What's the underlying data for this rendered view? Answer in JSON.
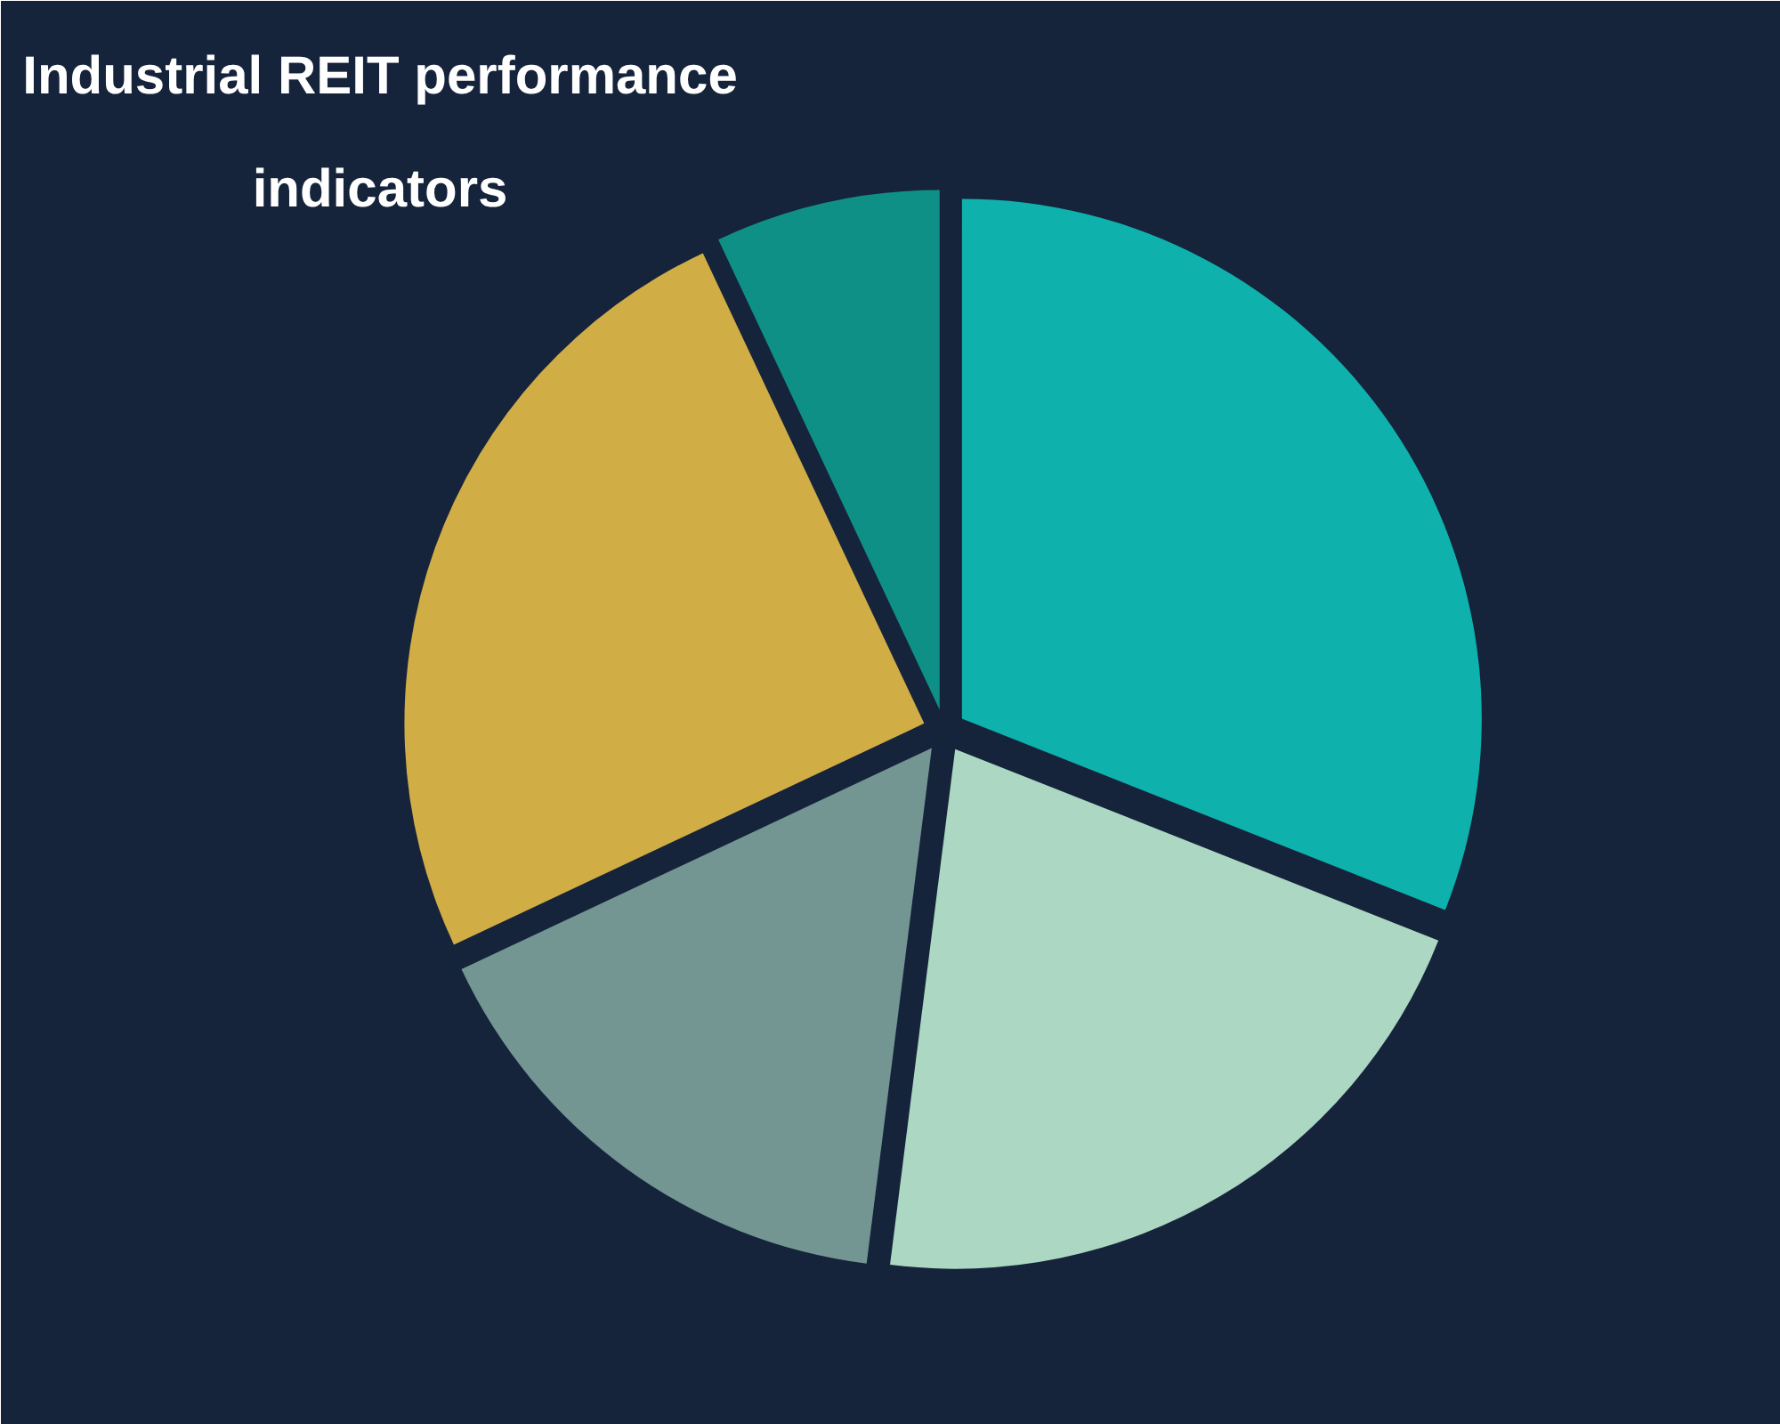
{
  "chart_data": {
    "type": "pie",
    "title": "Industrial REIT performance indicators",
    "categories": [
      null,
      null,
      null,
      null,
      null
    ],
    "values": [
      31,
      21,
      16,
      25,
      7
    ],
    "colors": [
      "#0fb1ac",
      "#acd7c3",
      "#739693",
      "#d1ad46",
      "#0f9087"
    ]
  }
}
